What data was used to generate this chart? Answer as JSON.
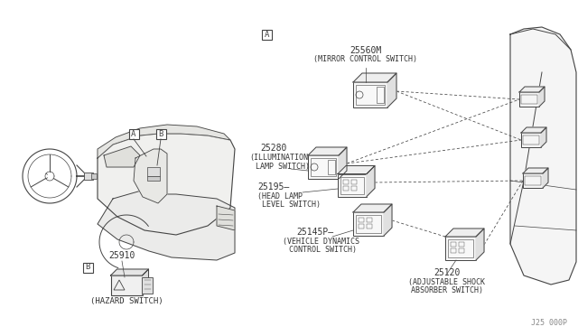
{
  "bg_color": "#ffffff",
  "line_color": "#444444",
  "label_color": "#333333",
  "part_number_ref": "J25 000P",
  "switches": {
    "mirror": {
      "part": "25560M",
      "label": "(MIRROR CONTROL SWITCH)"
    },
    "illumination": {
      "part": "25280",
      "label": "(ILLUMINATION\nLAMP SWITCH)"
    },
    "headlamp": {
      "part": "25195",
      "label": "(HEAD LAMP\nLEVEL SWITCH)"
    },
    "vehicle_dynamics": {
      "part": "25145P",
      "label": "(VEHICLE DYNAMICS\nCONTROL SWITCH)"
    },
    "adjustable_shock": {
      "part": "25120",
      "label": "(ADJUSTABLE SHOCK\nABSORBER SWITCH)"
    },
    "hazard": {
      "part": "25910",
      "label": "(HAZARD SWITCH)"
    }
  }
}
